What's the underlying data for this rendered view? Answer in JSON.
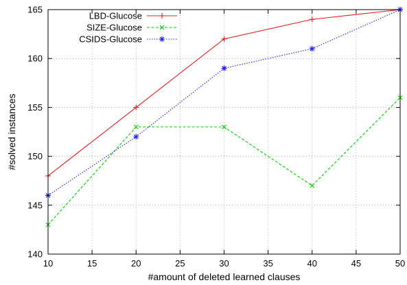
{
  "chart_data": {
    "type": "line",
    "title": "",
    "xlabel": "#amount of deleted learned clauses",
    "ylabel": "#solved instances",
    "xlim": [
      10,
      50
    ],
    "ylim": [
      140,
      165
    ],
    "xticks": [
      10,
      15,
      20,
      25,
      30,
      35,
      40,
      45,
      50
    ],
    "yticks": [
      140,
      145,
      150,
      155,
      160,
      165
    ],
    "grid": true,
    "legend_position": "top-left",
    "series": [
      {
        "name": "LBD-Glucose",
        "color": "#e41a1c",
        "line_style": "solid",
        "marker": "plus",
        "x": [
          10,
          20,
          30,
          40,
          50
        ],
        "y": [
          148,
          155,
          162,
          164,
          165
        ]
      },
      {
        "name": "SIZE-Glucose",
        "color": "#00cc00",
        "line_style": "dashed",
        "marker": "cross",
        "x": [
          10,
          20,
          30,
          40,
          50
        ],
        "y": [
          143,
          153,
          153,
          147,
          156
        ]
      },
      {
        "name": "CSIDS-Glucose",
        "color": "#1c1cee",
        "line_style": "dotted",
        "marker": "star",
        "x": [
          10,
          20,
          30,
          40,
          50
        ],
        "y": [
          146,
          152,
          159,
          161,
          165
        ]
      }
    ]
  }
}
